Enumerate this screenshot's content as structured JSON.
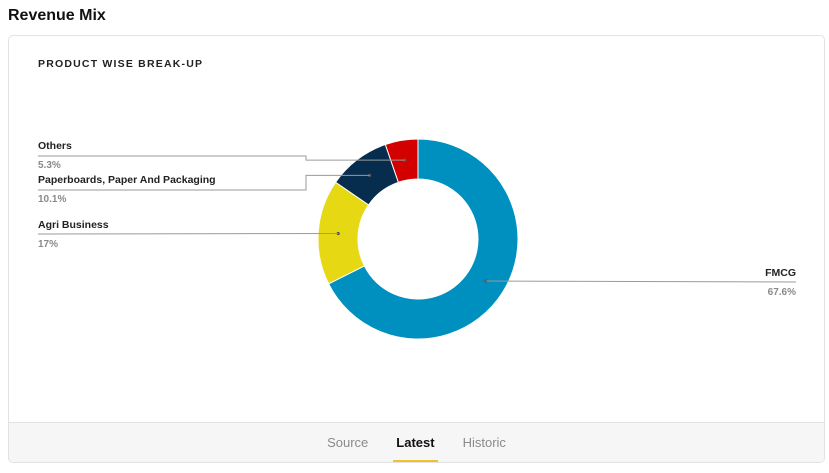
{
  "page": {
    "title": "Revenue Mix"
  },
  "chart_data": {
    "type": "pie",
    "variant": "donut",
    "title": "PRODUCT WISE BREAK-UP",
    "slices": [
      {
        "name": "FMCG",
        "value": 67.6,
        "display": "67.6%",
        "color": "#0090c0",
        "label_side": "right"
      },
      {
        "name": "Agri Business",
        "value": 17,
        "display": "17%",
        "color": "#e6d813",
        "label_side": "left"
      },
      {
        "name": "Paperboards, Paper And Packaging",
        "value": 10.1,
        "display": "10.1%",
        "color": "#062d4e",
        "label_side": "left"
      },
      {
        "name": "Others",
        "value": 5.3,
        "display": "5.3%",
        "color": "#d30000",
        "label_side": "left"
      }
    ]
  },
  "footer": {
    "tabs": [
      {
        "label": "Source",
        "active": false
      },
      {
        "label": "Latest",
        "active": true
      },
      {
        "label": "Historic",
        "active": false
      }
    ]
  }
}
